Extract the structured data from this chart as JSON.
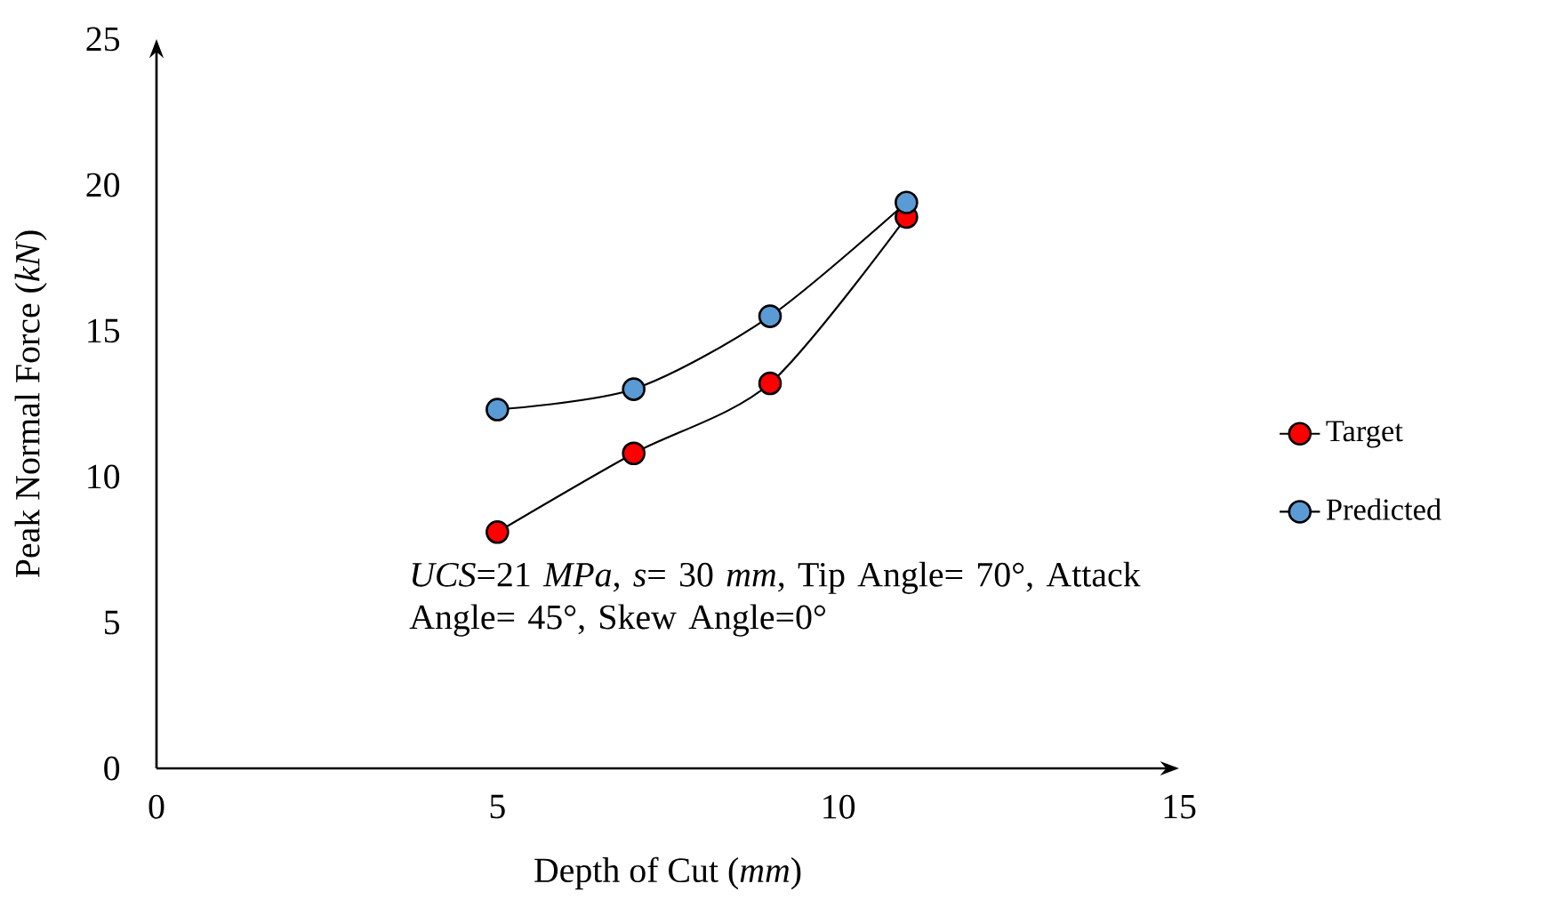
{
  "chart_data": {
    "type": "line",
    "xlabel": "Depth of Cut (*mm*)",
    "ylabel": "Peak Normal Force (*kN*)",
    "x": [
      5,
      7,
      9,
      11
    ],
    "series": [
      {
        "name": "Target",
        "color": "#ff0000",
        "values": [
          8.1,
          10.8,
          13.2,
          18.9
        ]
      },
      {
        "name": "Predicted",
        "color": "#5b9bd5",
        "values": [
          12.3,
          13.0,
          15.5,
          19.4
        ]
      }
    ],
    "xlim": [
      0,
      15
    ],
    "xticks": [
      0,
      5,
      10,
      15
    ],
    "ylim": [
      0,
      25
    ],
    "yticks": [
      0,
      5,
      10,
      15,
      20,
      25
    ],
    "annotations": [
      "*UCS*=21 *MPa*, *s*= 30 *mm*, Tip Angle= 70°, Attack Angle= 45°, Skew Angle=0°"
    ],
    "legend": "right",
    "marker": "circle",
    "line_style": "solid"
  }
}
